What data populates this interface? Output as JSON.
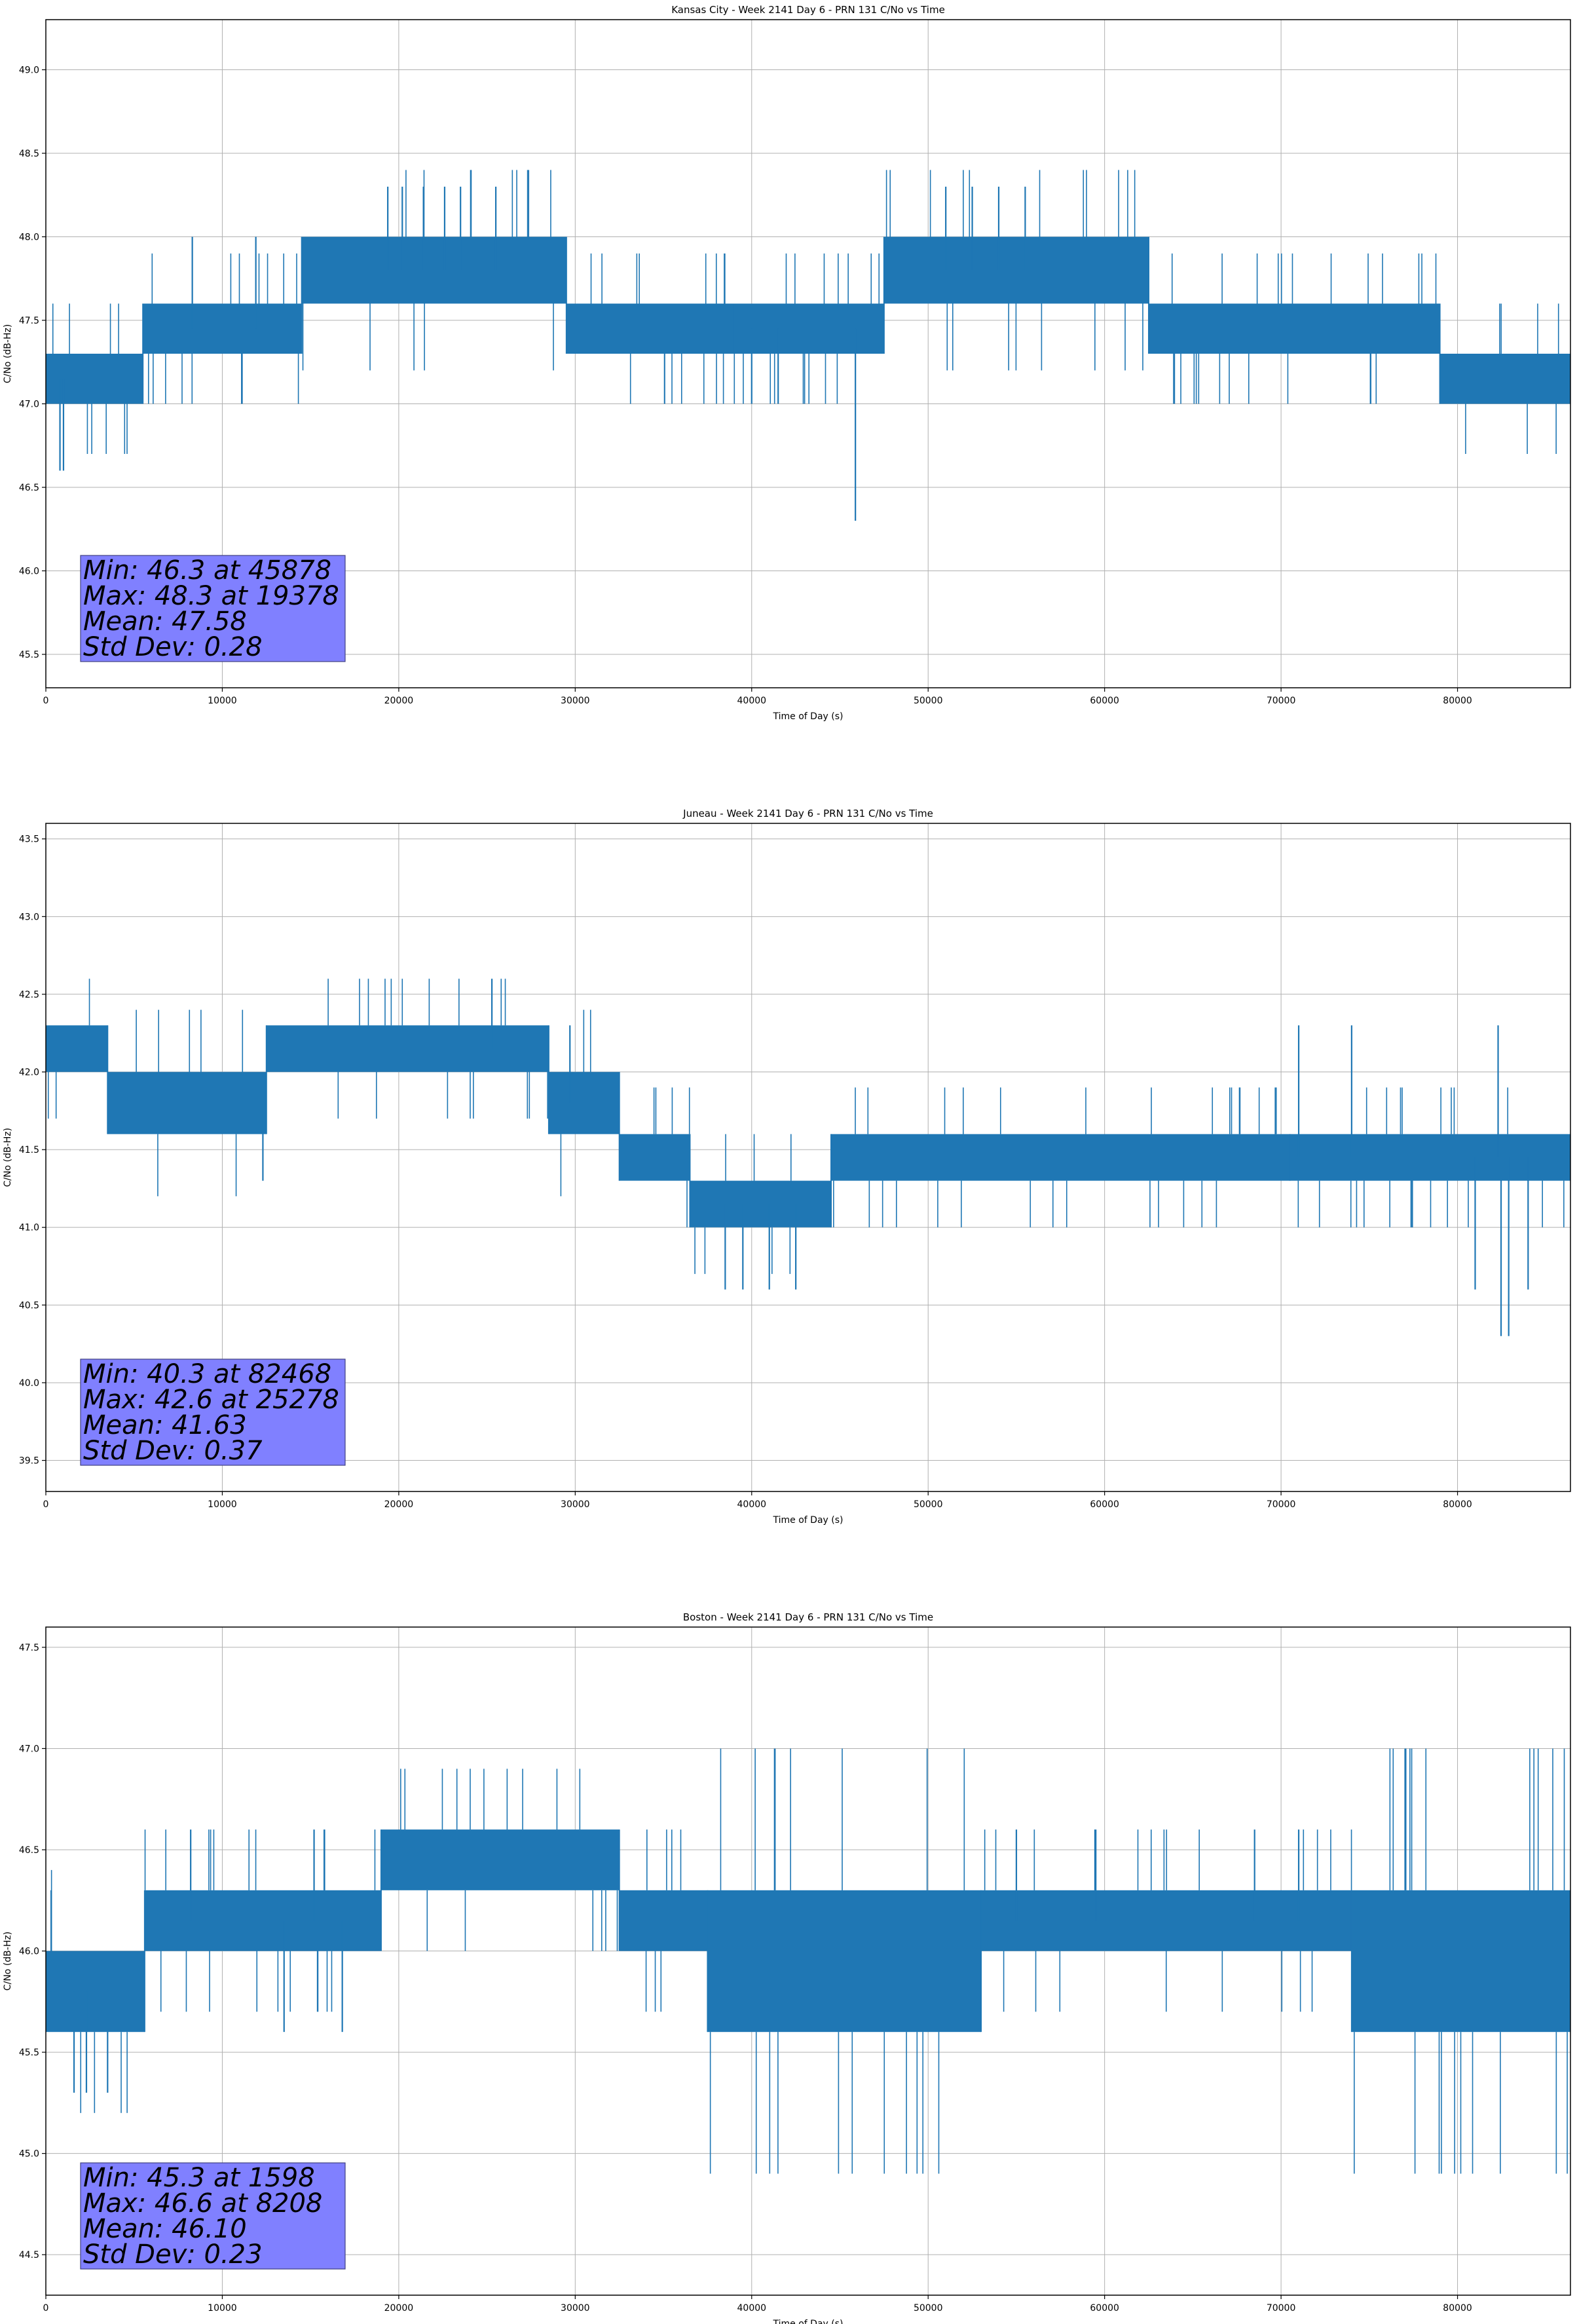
{
  "colors": {
    "line": "#1f77b4",
    "grid": "#b0b0b0",
    "stats_box": "#8080ff",
    "axis": "#000000"
  },
  "chart_data": [
    {
      "type": "line",
      "title": "Kansas City - Week 2141 Day 6 - PRN 131 C/No vs Time",
      "xlabel": "Time of Day (s)",
      "ylabel": "C/No (dB-Hz)",
      "xlim": [
        0,
        86400
      ],
      "ylim": [
        45.3,
        49.3
      ],
      "xticks": [
        0,
        10000,
        20000,
        30000,
        40000,
        50000,
        60000,
        70000,
        80000
      ],
      "yticks": [
        "45.5",
        "46.0",
        "46.5",
        "47.0",
        "47.5",
        "48.0",
        "48.5",
        "49.0"
      ],
      "grid": true,
      "stats": [
        "Min: 46.3 at 45878",
        "Max: 48.3 at 19378",
        "Mean: 47.58",
        "Std Dev: 0.28"
      ],
      "series": [
        {
          "name": "C/No",
          "segments": [
            {
              "x": [
                0,
                5500
              ],
              "low": 47.0,
              "high": 47.3
            },
            {
              "x": [
                5500,
                14500
              ],
              "low": 47.3,
              "high": 47.6
            },
            {
              "x": [
                14500,
                29500
              ],
              "low": 47.6,
              "high": 48.0
            },
            {
              "x": [
                29500,
                39000
              ],
              "low": 47.3,
              "high": 47.6
            },
            {
              "x": [
                39000,
                47500
              ],
              "low": 47.3,
              "high": 47.6
            },
            {
              "x": [
                47500,
                62500
              ],
              "low": 47.6,
              "high": 48.0
            },
            {
              "x": [
                62500,
                79000
              ],
              "low": 47.3,
              "high": 47.6
            },
            {
              "x": [
                79000,
                86400
              ],
              "low": 47.0,
              "high": 47.3
            }
          ],
          "spikes": [
            {
              "x": 800,
              "y": 46.6
            },
            {
              "x": 1000,
              "y": 46.6
            },
            {
              "x": 45878,
              "y": 46.3
            },
            {
              "x": 19378,
              "y": 48.3
            },
            {
              "x": 20200,
              "y": 48.3
            },
            {
              "x": 21400,
              "y": 48.3
            },
            {
              "x": 22600,
              "y": 48.3
            },
            {
              "x": 23500,
              "y": 48.3
            },
            {
              "x": 25500,
              "y": 48.3
            },
            {
              "x": 51000,
              "y": 48.3
            },
            {
              "x": 52500,
              "y": 48.3
            },
            {
              "x": 54000,
              "y": 48.3
            },
            {
              "x": 55500,
              "y": 48.3
            },
            {
              "x": 8300,
              "y": 48.0
            },
            {
              "x": 11900,
              "y": 48.0
            },
            {
              "x": 40000,
              "y": 47.0
            },
            {
              "x": 41500,
              "y": 47.0
            }
          ]
        }
      ]
    },
    {
      "type": "line",
      "title": "Juneau - Week 2141 Day 6 - PRN 131 C/No vs Time",
      "xlabel": "Time of Day (s)",
      "ylabel": "C/No (dB-Hz)",
      "xlim": [
        0,
        86400
      ],
      "ylim": [
        39.3,
        43.6
      ],
      "xticks": [
        0,
        10000,
        20000,
        30000,
        40000,
        50000,
        60000,
        70000,
        80000
      ],
      "yticks": [
        "39.5",
        "40.0",
        "40.5",
        "41.0",
        "41.5",
        "42.0",
        "42.5",
        "43.0",
        "43.5"
      ],
      "grid": true,
      "stats": [
        "Min: 40.3 at 82468",
        "Max: 42.6 at 25278",
        "Mean: 41.63",
        "Std Dev: 0.37"
      ],
      "series": [
        {
          "name": "C/No",
          "segments": [
            {
              "x": [
                0,
                3500
              ],
              "low": 42.0,
              "high": 42.3
            },
            {
              "x": [
                3500,
                12500
              ],
              "low": 41.6,
              "high": 42.0
            },
            {
              "x": [
                12500,
                28500
              ],
              "low": 42.0,
              "high": 42.3
            },
            {
              "x": [
                28500,
                32500
              ],
              "low": 41.6,
              "high": 42.0
            },
            {
              "x": [
                32500,
                36500
              ],
              "low": 41.3,
              "high": 41.6
            },
            {
              "x": [
                36500,
                44500
              ],
              "low": 41.0,
              "high": 41.3
            },
            {
              "x": [
                44500,
                70500
              ],
              "low": 41.3,
              "high": 41.6
            },
            {
              "x": [
                70500,
                86400
              ],
              "low": 41.3,
              "high": 41.6
            }
          ],
          "spikes": [
            {
              "x": 25278,
              "y": 42.6
            },
            {
              "x": 12300,
              "y": 41.3
            },
            {
              "x": 82468,
              "y": 40.3
            },
            {
              "x": 82900,
              "y": 40.3
            },
            {
              "x": 38500,
              "y": 40.6
            },
            {
              "x": 39500,
              "y": 40.6
            },
            {
              "x": 41000,
              "y": 40.6
            },
            {
              "x": 42500,
              "y": 40.6
            },
            {
              "x": 81000,
              "y": 40.6
            },
            {
              "x": 84000,
              "y": 40.6
            },
            {
              "x": 71000,
              "y": 42.3
            },
            {
              "x": 74000,
              "y": 42.3
            },
            {
              "x": 82300,
              "y": 42.3
            },
            {
              "x": 29700,
              "y": 42.3
            }
          ]
        }
      ]
    },
    {
      "type": "line",
      "title": "Boston - Week 2141 Day 6 - PRN 131 C/No vs Time",
      "xlabel": "Time of Day (s)",
      "ylabel": "C/No (dB-Hz)",
      "xlim": [
        0,
        86400
      ],
      "ylim": [
        44.3,
        47.6
      ],
      "xticks": [
        0,
        10000,
        20000,
        30000,
        40000,
        50000,
        60000,
        70000,
        80000
      ],
      "yticks": [
        "44.5",
        "45.0",
        "45.5",
        "46.0",
        "46.5",
        "47.0",
        "47.5"
      ],
      "grid": true,
      "stats": [
        "Min: 45.3 at 1598",
        "Max: 46.6 at 8208",
        "Mean: 46.10",
        "Std Dev: 0.23"
      ],
      "series": [
        {
          "name": "C/No",
          "segments": [
            {
              "x": [
                0,
                5600
              ],
              "low": 45.6,
              "high": 46.0
            },
            {
              "x": [
                5600,
                19000
              ],
              "low": 46.0,
              "high": 46.3
            },
            {
              "x": [
                19000,
                32500
              ],
              "low": 46.3,
              "high": 46.6
            },
            {
              "x": [
                32500,
                37500
              ],
              "low": 46.0,
              "high": 46.3
            },
            {
              "x": [
                37500,
                53000
              ],
              "low": 45.6,
              "high": 46.3
            },
            {
              "x": [
                53000,
                74000
              ],
              "low": 46.0,
              "high": 46.3
            },
            {
              "x": [
                74000,
                86400
              ],
              "low": 45.6,
              "high": 46.3
            }
          ],
          "spikes": [
            {
              "x": 1598,
              "y": 45.3
            },
            {
              "x": 2300,
              "y": 45.3
            },
            {
              "x": 3500,
              "y": 45.3
            },
            {
              "x": 8208,
              "y": 46.6
            },
            {
              "x": 15200,
              "y": 46.6
            },
            {
              "x": 55000,
              "y": 46.6
            },
            {
              "x": 59500,
              "y": 46.6
            },
            {
              "x": 68500,
              "y": 46.6
            },
            {
              "x": 71000,
              "y": 46.6
            },
            {
              "x": 300,
              "y": 46.3
            },
            {
              "x": 13500,
              "y": 45.6
            },
            {
              "x": 16800,
              "y": 45.6
            }
          ]
        }
      ]
    }
  ]
}
